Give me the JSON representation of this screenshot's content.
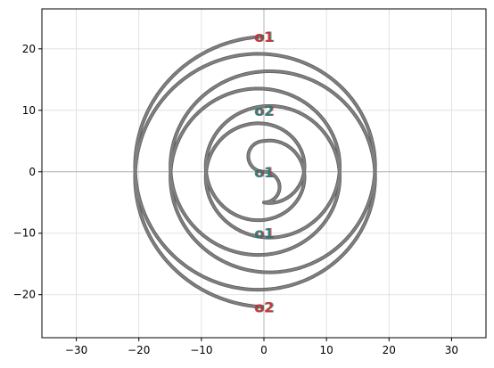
{
  "chart_data": {
    "type": "line",
    "title": "",
    "xlabel": "",
    "ylabel": "",
    "xlim": [
      -35.5,
      35.5
    ],
    "ylim": [
      -27,
      26.5
    ],
    "xticks": [
      -30,
      -20,
      -10,
      0,
      10,
      20,
      30
    ],
    "yticks": [
      -20,
      -10,
      0,
      10,
      20
    ],
    "xtick_labels": [
      "−30",
      "−20",
      "−10",
      "0",
      "10",
      "20",
      "30"
    ],
    "ytick_labels": [
      "−20",
      "−10",
      "0",
      "10",
      "20"
    ],
    "grid": true,
    "reference_lines": {
      "x": 0,
      "y": 0
    },
    "series": [
      {
        "path": "double spiral (S-curve joining two interleaved spirals)",
        "color": "#808080",
        "outer_radius": 22,
        "inner_radius": 5,
        "turns_per_arm": 3
      }
    ],
    "annotations": [
      {
        "text": "o1",
        "x": 0,
        "y": 22,
        "color": "#d62728"
      },
      {
        "text": "o2",
        "x": 0,
        "y": 10,
        "color": "#17807e"
      },
      {
        "text": "o1",
        "x": 0,
        "y": 0,
        "color": "#17807e"
      },
      {
        "text": "o1",
        "x": 0,
        "y": -10,
        "color": "#17807e"
      },
      {
        "text": "o2",
        "x": 0,
        "y": -22,
        "color": "#d62728"
      }
    ]
  }
}
